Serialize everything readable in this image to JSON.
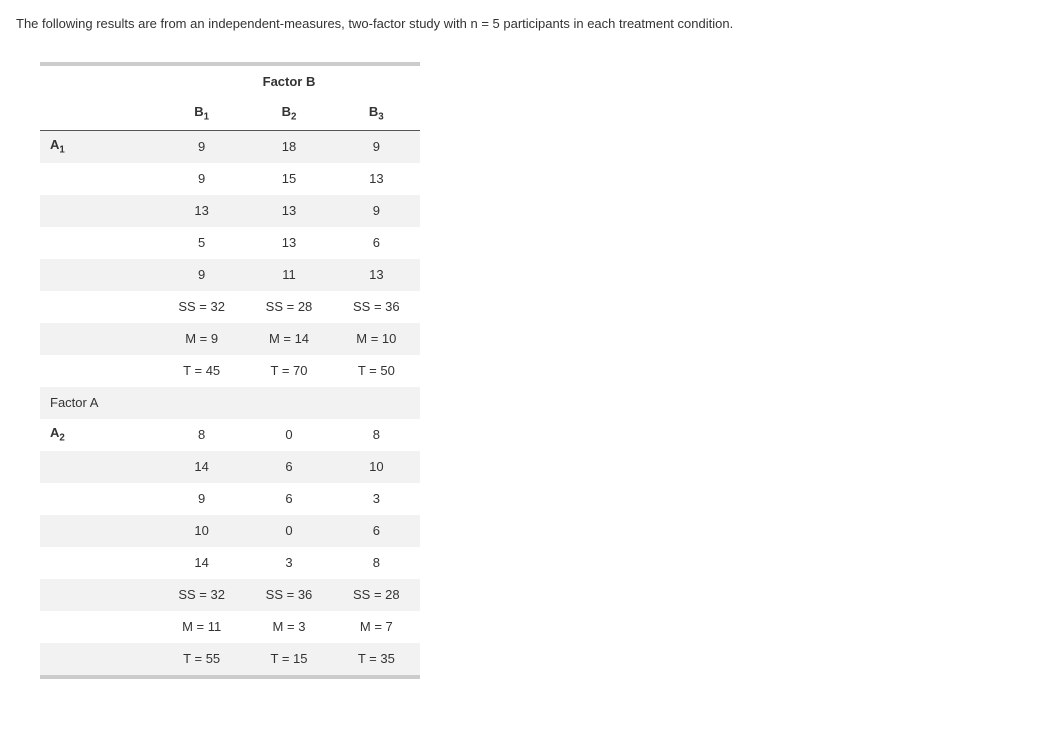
{
  "intro": "The following results are from an independent-measures, two-factor study with n = 5 participants in each treatment condition.",
  "factorB_label": "Factor B",
  "factorA_label": "Factor A",
  "col_headers": {
    "b1": "B",
    "b1_sub": "1",
    "b2": "B",
    "b2_sub": "2",
    "b3": "B",
    "b3_sub": "3"
  },
  "row_a1_label": "A",
  "row_a1_sub": "1",
  "row_a2_label": "A",
  "row_a2_sub": "2",
  "a1": {
    "rows": [
      [
        "9",
        "18",
        "9"
      ],
      [
        "9",
        "15",
        "13"
      ],
      [
        "13",
        "13",
        "9"
      ],
      [
        "5",
        "13",
        "6"
      ],
      [
        "9",
        "11",
        "13"
      ]
    ],
    "ss": [
      "SS = 32",
      "SS = 28",
      "SS = 36"
    ],
    "m": [
      "M = 9",
      "M = 14",
      "M = 10"
    ],
    "t": [
      "T = 45",
      "T = 70",
      "T = 50"
    ]
  },
  "a2": {
    "rows": [
      [
        "8",
        "0",
        "8"
      ],
      [
        "14",
        "6",
        "10"
      ],
      [
        "9",
        "6",
        "3"
      ],
      [
        "10",
        "0",
        "6"
      ],
      [
        "14",
        "3",
        "8"
      ]
    ],
    "ss": [
      "SS = 32",
      "SS = 36",
      "SS = 28"
    ],
    "m": [
      "M = 11",
      "M = 3",
      "M = 7"
    ],
    "t": [
      "T = 55",
      "T = 15",
      "T = 35"
    ]
  }
}
